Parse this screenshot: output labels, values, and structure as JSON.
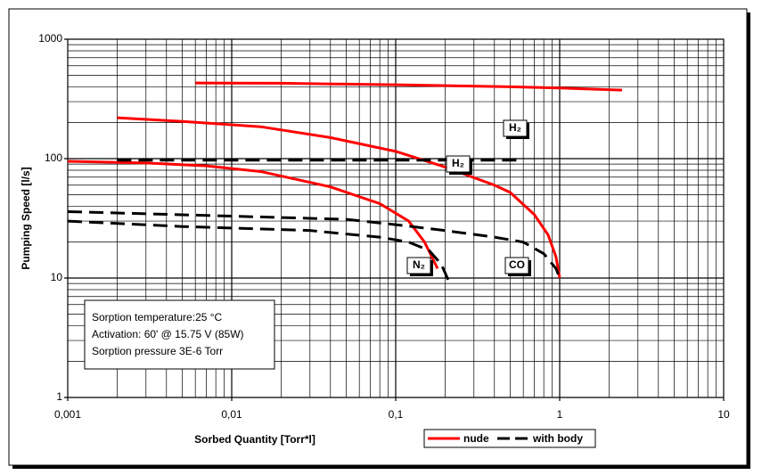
{
  "chart_data": {
    "type": "line",
    "x_label": "Sorbed Quantity [Torr*l]",
    "y_label": "Pumping Speed [l/s]",
    "xscale": "log",
    "yscale": "log",
    "grid": true,
    "xlim": [
      0.001,
      10
    ],
    "ylim": [
      1,
      1000
    ],
    "xticks": [
      {
        "value": 0.001,
        "label": "0,001"
      },
      {
        "value": 0.01,
        "label": "0,01"
      },
      {
        "value": 0.1,
        "label": "0,1"
      },
      1,
      10
    ],
    "yticks": [
      1,
      10,
      100,
      1000
    ],
    "legend": [
      {
        "name": "nude",
        "color": "#ff0000",
        "dashed": false
      },
      {
        "name": "with body",
        "color": "#000000",
        "dashed": true
      }
    ],
    "series": [
      {
        "legend": 0,
        "x": [
          0.006,
          0.02,
          0.1,
          0.5,
          1,
          2.4
        ],
        "values": [
          430,
          428,
          415,
          400,
          390,
          375
        ]
      },
      {
        "legend": 0,
        "x": [
          0.002,
          0.005,
          0.015,
          0.04,
          0.1,
          0.2,
          0.4,
          0.5,
          0.7,
          0.85,
          0.95,
          1.0
        ],
        "values": [
          220,
          205,
          185,
          150,
          115,
          85,
          60,
          52,
          34,
          23,
          15,
          10
        ]
      },
      {
        "legend": 0,
        "x": [
          0.001,
          0.003,
          0.007,
          0.015,
          0.04,
          0.08,
          0.12,
          0.15,
          0.18
        ],
        "values": [
          95,
          92,
          87,
          78,
          58,
          42,
          30,
          20,
          12
        ]
      },
      {
        "legend": 1,
        "x": [
          0.002,
          0.6
        ],
        "values": [
          97,
          97
        ]
      },
      {
        "legend": 1,
        "x": [
          0.001,
          0.01,
          0.05,
          0.1,
          0.2,
          0.4,
          0.6,
          0.8,
          0.95,
          1.0
        ],
        "values": [
          36,
          33,
          31,
          28,
          25,
          22,
          20,
          16,
          12,
          10
        ]
      },
      {
        "legend": 1,
        "x": [
          0.001,
          0.005,
          0.03,
          0.08,
          0.12,
          0.16,
          0.19,
          0.21
        ],
        "values": [
          30,
          27,
          25,
          22,
          20,
          17,
          13,
          9.5
        ]
      }
    ],
    "annotations": [
      "H₂",
      "H₂",
      "N₂",
      "CO"
    ],
    "note": [
      "Sorption temperature:25 °C",
      "Activation: 60' @ 15.75 V (85W)",
      "Sorption pressure 3E-6 Torr"
    ]
  }
}
